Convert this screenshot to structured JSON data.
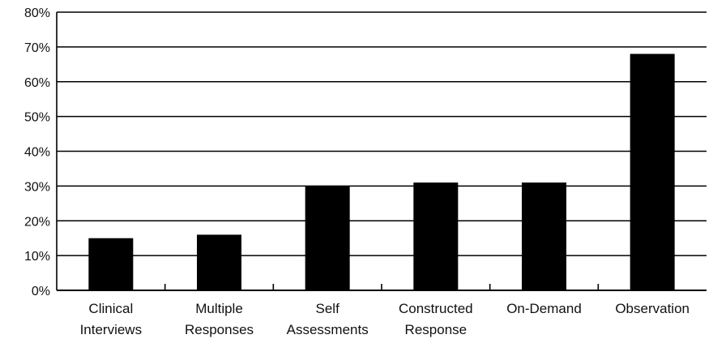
{
  "chart_data": {
    "type": "bar",
    "title": "",
    "xlabel": "",
    "ylabel": "",
    "ylim": [
      0,
      80
    ],
    "y_tick_step": 10,
    "y_tick_format": "percent",
    "grid": true,
    "categories": [
      [
        "Clinical",
        "Interviews"
      ],
      [
        "Multiple",
        "Responses"
      ],
      [
        "Self",
        "Assessments"
      ],
      [
        "Constructed",
        "Response"
      ],
      [
        "On-Demand"
      ],
      [
        "Observation"
      ]
    ],
    "values": [
      15,
      16,
      30,
      31,
      31,
      68
    ],
    "colors": {
      "bar": "#000000",
      "grid": "#000000",
      "text": "#111111"
    }
  }
}
